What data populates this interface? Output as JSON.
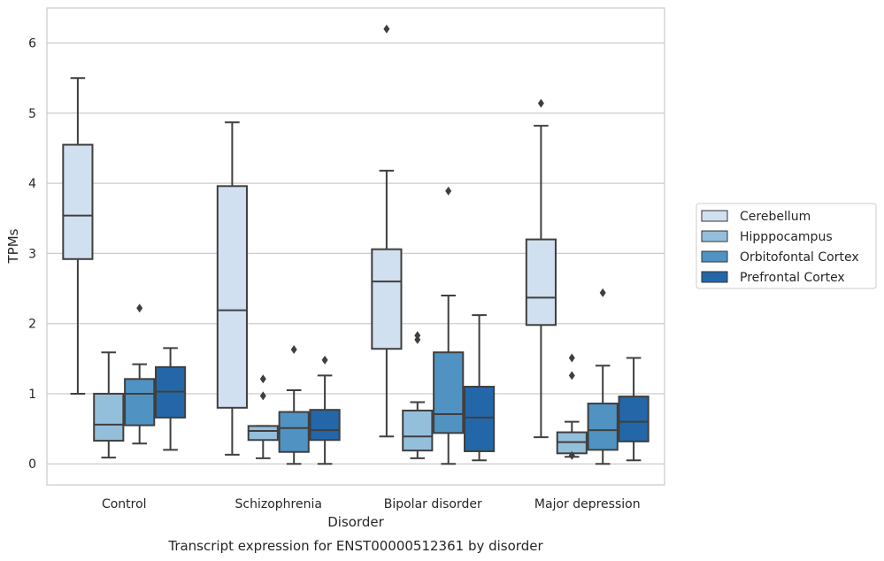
{
  "chart_data": {
    "type": "boxplot",
    "title": "Transcript expression for ENST00000512361 by disorder",
    "xlabel": "Disorder",
    "ylabel": "TPMs",
    "ylim": [
      -0.3,
      6.5
    ],
    "yticks": [
      0,
      1,
      2,
      3,
      4,
      5,
      6
    ],
    "grid": "horizontal",
    "legend_position": "right",
    "categories": [
      "Control",
      "Schizophrenia",
      "Bipolar disorder",
      "Major depression"
    ],
    "series": [
      {
        "name": "Cerebellum",
        "color": "#d1e0f0",
        "boxes": [
          {
            "whislo": 1.0,
            "q1": 2.92,
            "med": 3.54,
            "q3": 4.55,
            "whishi": 5.5,
            "fliers": []
          },
          {
            "whislo": 0.13,
            "q1": 0.8,
            "med": 2.19,
            "q3": 3.96,
            "whishi": 4.87,
            "fliers": []
          },
          {
            "whislo": 0.39,
            "q1": 1.64,
            "med": 2.6,
            "q3": 3.06,
            "whishi": 4.18,
            "fliers": [
              6.2
            ]
          },
          {
            "whislo": 0.38,
            "q1": 1.98,
            "med": 2.37,
            "q3": 3.2,
            "whishi": 4.82,
            "fliers": [
              5.14
            ]
          }
        ]
      },
      {
        "name": "Hipppocampus",
        "color": "#94bfdb",
        "boxes": [
          {
            "whislo": 0.09,
            "q1": 0.33,
            "med": 0.56,
            "q3": 1.0,
            "whishi": 1.59,
            "fliers": []
          },
          {
            "whislo": 0.08,
            "q1": 0.34,
            "med": 0.47,
            "q3": 0.54,
            "whishi": 0.54,
            "fliers": [
              0.97,
              1.21
            ]
          },
          {
            "whislo": 0.08,
            "q1": 0.19,
            "med": 0.39,
            "q3": 0.76,
            "whishi": 0.88,
            "fliers": [
              1.77,
              1.83
            ]
          },
          {
            "whislo": 0.1,
            "q1": 0.15,
            "med": 0.31,
            "q3": 0.45,
            "whishi": 0.6,
            "fliers": [
              0.12,
              1.26,
              1.51
            ]
          }
        ]
      },
      {
        "name": "Orbitofontal Cortex",
        "color": "#5093c2",
        "boxes": [
          {
            "whislo": 0.29,
            "q1": 0.55,
            "med": 1.0,
            "q3": 1.21,
            "whishi": 1.42,
            "fliers": [
              2.22
            ]
          },
          {
            "whislo": 0.0,
            "q1": 0.17,
            "med": 0.51,
            "q3": 0.74,
            "whishi": 1.05,
            "fliers": [
              1.63
            ]
          },
          {
            "whislo": 0.0,
            "q1": 0.44,
            "med": 0.71,
            "q3": 1.59,
            "whishi": 2.4,
            "fliers": [
              3.89
            ]
          },
          {
            "whislo": 0.0,
            "q1": 0.2,
            "med": 0.48,
            "q3": 0.86,
            "whishi": 1.4,
            "fliers": [
              2.44
            ]
          }
        ]
      },
      {
        "name": "Prefrontal Cortex",
        "color": "#2467a8",
        "boxes": [
          {
            "whislo": 0.2,
            "q1": 0.66,
            "med": 1.03,
            "q3": 1.38,
            "whishi": 1.65,
            "fliers": []
          },
          {
            "whislo": 0.0,
            "q1": 0.34,
            "med": 0.48,
            "q3": 0.77,
            "whishi": 1.26,
            "fliers": [
              1.48
            ]
          },
          {
            "whislo": 0.05,
            "q1": 0.18,
            "med": 0.66,
            "q3": 1.1,
            "whishi": 2.12,
            "fliers": []
          },
          {
            "whislo": 0.05,
            "q1": 0.32,
            "med": 0.6,
            "q3": 0.96,
            "whishi": 1.51,
            "fliers": []
          }
        ]
      }
    ]
  }
}
